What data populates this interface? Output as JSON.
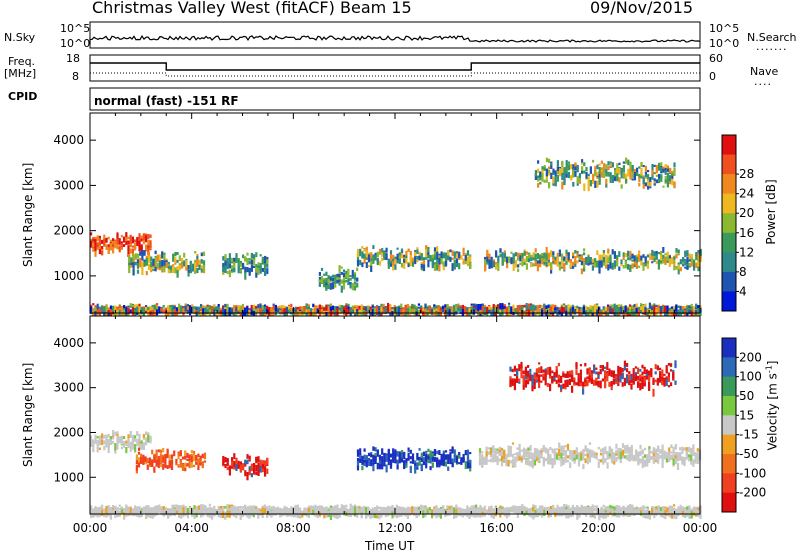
{
  "header": {
    "station": "Christmas Valley West (fitACF)",
    "beam": "Beam 15",
    "date": "09/Nov/2015"
  },
  "strip_panels": {
    "nsky_label": "N.Sky",
    "nsky_ticks": [
      "10^5",
      "10^0"
    ],
    "nsearch_label": "N.Search",
    "nsearch_ticks": [
      "10^5",
      "10^0"
    ],
    "freq_label_1": "Freq.",
    "freq_label_2": "[MHz]",
    "freq_ticks": [
      "18",
      "8"
    ],
    "nave_label": "Nave",
    "nave_ticks": [
      "60",
      "0"
    ],
    "cpid_label": "CPID",
    "cpid_value": "normal (fast) -151 RF"
  },
  "chart_data": [
    {
      "type": "heatmap",
      "name": "power-panel",
      "ylabel": "Slant Range [km]",
      "xlabel": "Time UT",
      "xticks": [
        "00:00",
        "04:00",
        "08:00",
        "12:00",
        "16:00",
        "20:00",
        "00:00"
      ],
      "xlim_hours": [
        0,
        24
      ],
      "yticks": [
        1000,
        2000,
        3000,
        4000
      ],
      "ylim": [
        180,
        4600
      ],
      "colorbar": {
        "label": "Power [dB]",
        "ticks": [
          4,
          8,
          12,
          16,
          20,
          24,
          28
        ],
        "colors": [
          "#0018d8",
          "#1f55b0",
          "#2e8a8a",
          "#3a9a5a",
          "#8ab830",
          "#f0b820",
          "#f08820",
          "#f05020",
          "#e01010"
        ]
      },
      "features": [
        {
          "t_start": 0.0,
          "t_end": 2.4,
          "range_km": 1750,
          "level": "strong"
        },
        {
          "t_start": 1.5,
          "t_end": 4.5,
          "range_km": 1350,
          "level": "moderate"
        },
        {
          "t_start": 5.2,
          "t_end": 7.0,
          "range_km": 1300,
          "level": "weak"
        },
        {
          "t_start": 9.0,
          "t_end": 10.5,
          "range_km": 1000,
          "level": "weak"
        },
        {
          "t_start": 10.5,
          "t_end": 15.0,
          "range_km": 1450,
          "level": "moderate"
        },
        {
          "t_start": 15.5,
          "t_end": 24.0,
          "range_km": 1400,
          "level": "moderate"
        },
        {
          "t_start": 17.5,
          "t_end": 23.0,
          "range_km": 3300,
          "level": "moderate"
        },
        {
          "t_start": 0.0,
          "t_end": 24.0,
          "range_km": 300,
          "level": "ground-scatter"
        }
      ]
    },
    {
      "type": "heatmap",
      "name": "velocity-panel",
      "ylabel": "Slant Range [km]",
      "xlabel": "Time UT",
      "xticks": [
        "00:00",
        "04:00",
        "08:00",
        "12:00",
        "16:00",
        "20:00",
        "00:00"
      ],
      "xlim_hours": [
        0,
        24
      ],
      "yticks": [
        1000,
        2000,
        3000,
        4000
      ],
      "ylim": [
        180,
        4600
      ],
      "colorbar": {
        "label": "Velocity [m s^-1]",
        "ticks": [
          200,
          100,
          50,
          15,
          -15,
          -50,
          -100,
          -200
        ],
        "colors": [
          "#1a2fc0",
          "#2c6ab8",
          "#3a9a5a",
          "#78c840",
          "#c8c8c8",
          "#f0a020",
          "#f07020",
          "#f04020",
          "#e01010"
        ]
      },
      "features": [
        {
          "t_start": 0.0,
          "t_end": 2.4,
          "range_km": 1850,
          "velocity": "ground-scatter"
        },
        {
          "t_start": 1.8,
          "t_end": 4.5,
          "range_km": 1450,
          "velocity": -100
        },
        {
          "t_start": 5.2,
          "t_end": 7.0,
          "range_km": 1300,
          "velocity": -200
        },
        {
          "t_start": 10.5,
          "t_end": 15.0,
          "range_km": 1450,
          "velocity": 100
        },
        {
          "t_start": 15.3,
          "t_end": 24.0,
          "range_km": 1550,
          "velocity": "ground-scatter"
        },
        {
          "t_start": 16.5,
          "t_end": 23.0,
          "range_km": 3300,
          "velocity": -200
        },
        {
          "t_start": 0.0,
          "t_end": 24.0,
          "range_km": 300,
          "velocity": "ground-scatter"
        }
      ]
    }
  ]
}
